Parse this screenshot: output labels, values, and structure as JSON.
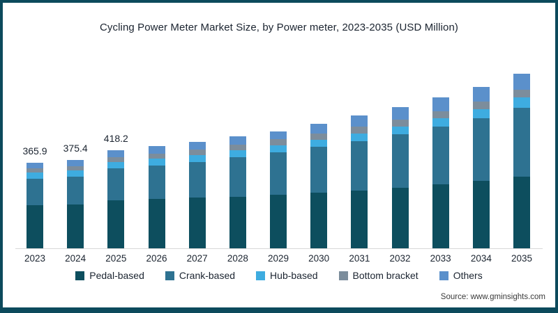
{
  "page": {
    "source": "Source: www.gminsights.com",
    "frame_color": "#0C4A5C",
    "background": "#FFFFFF",
    "text_color": "#1B2430"
  },
  "chart_data": {
    "type": "bar",
    "stacked": true,
    "title": "Cycling Power Meter Market Size, by Power meter, 2023-2035 (USD Million)",
    "unit": "USD Million",
    "categories": [
      "2023",
      "2024",
      "2025",
      "2026",
      "2027",
      "2028",
      "2029",
      "2030",
      "2031",
      "2032",
      "2033",
      "2034",
      "2035"
    ],
    "series": [
      {
        "name": "Pedal-based",
        "color": "#0D4E5E",
        "values": [
          183.0,
          186.5,
          204.0,
          210.0,
          215.5,
          219.5,
          227.0,
          236.0,
          247.0,
          259.0,
          274.0,
          289.0,
          306.0
        ]
      },
      {
        "name": "Crank-based",
        "color": "#2E7291",
        "values": [
          114.8,
          118.9,
          135.7,
          142.0,
          152.5,
          169.0,
          182.0,
          195.5,
          210.5,
          227.5,
          245.0,
          265.5,
          294.0
        ]
      },
      {
        "name": "Hub-based",
        "color": "#3EACE0",
        "values": [
          26.7,
          27.2,
          28.5,
          29.5,
          30.0,
          30.5,
          31.0,
          31.5,
          32.5,
          33.5,
          35.5,
          38.0,
          42.0
        ]
      },
      {
        "name": "Bottom bracket",
        "color": "#7C8D9C",
        "values": [
          17.8,
          18.3,
          20.0,
          22.0,
          23.0,
          23.5,
          25.0,
          26.5,
          27.5,
          28.5,
          30.5,
          33.0,
          35.0
        ]
      },
      {
        "name": "Others",
        "color": "#5B90CB",
        "values": [
          23.6,
          24.5,
          30.0,
          33.5,
          34.0,
          33.5,
          34.0,
          42.5,
          47.5,
          52.5,
          57.0,
          63.5,
          66.0
        ]
      }
    ],
    "totals": [
      365.9,
      375.4,
      418.2,
      437.0,
      455.0,
      476.0,
      499.0,
      532.0,
      565.0,
      601.0,
      642.0,
      689.0,
      743.0
    ],
    "total_labels": {
      "2023": "365.9",
      "2024": "375.4",
      "2025": "418.2"
    },
    "legend_position": "bottom",
    "grid": false,
    "y_axis_shown": false,
    "ylim": [
      0,
      800
    ]
  }
}
